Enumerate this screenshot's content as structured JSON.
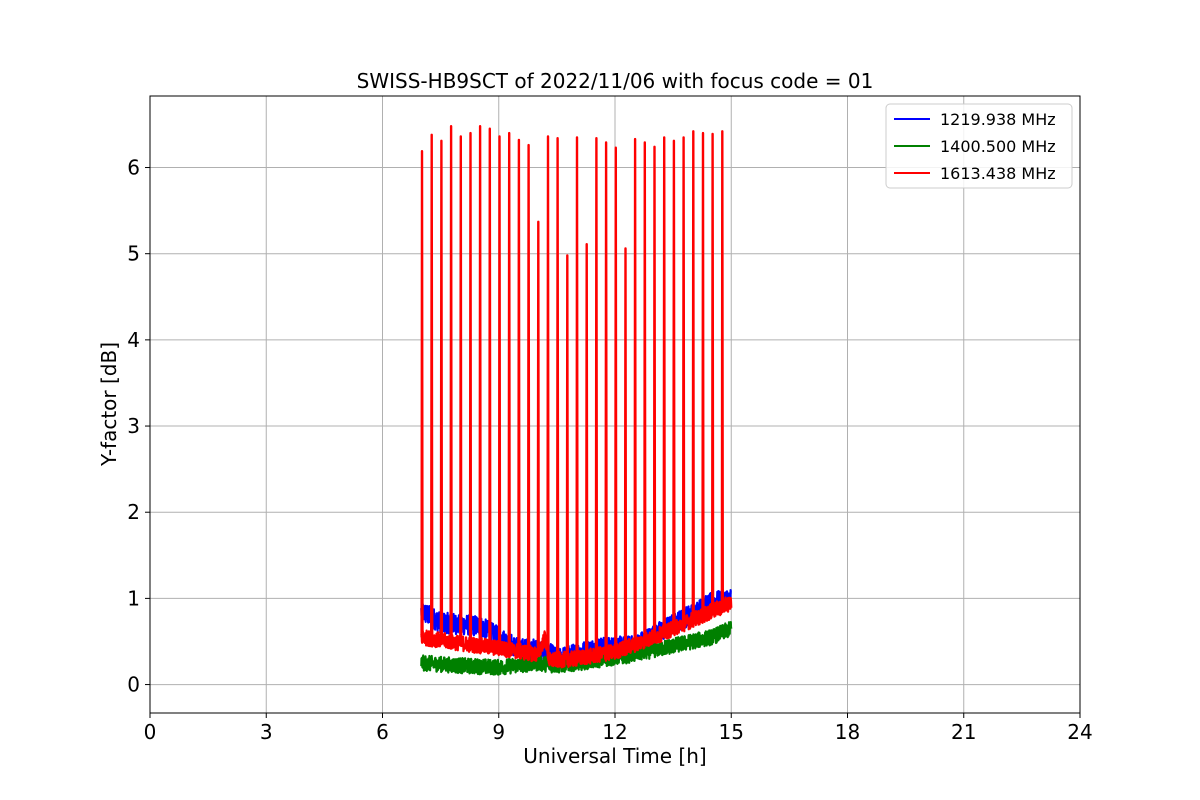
{
  "chart_data": {
    "type": "line",
    "title": "SWISS-HB9SCT of 2022/11/06 with focus code = 01",
    "xlabel": "Universal Time [h]",
    "ylabel": "Y-factor [dB]",
    "xlim": [
      0,
      24
    ],
    "ylim": [
      -0.33,
      6.83
    ],
    "xticks": [
      0,
      3,
      6,
      9,
      12,
      15,
      18,
      21,
      24
    ],
    "yticks": [
      0,
      1,
      2,
      3,
      4,
      5,
      6
    ],
    "grid": true,
    "legend_position": "top-right",
    "time_span": [
      7.0,
      15.0
    ],
    "series": [
      {
        "name": "1219.938 MHz",
        "color": "#0000ff",
        "baseline": [
          [
            7.0,
            0.85
          ],
          [
            7.5,
            0.72
          ],
          [
            8.5,
            0.68
          ],
          [
            9.5,
            0.42
          ],
          [
            10.2,
            0.4
          ],
          [
            10.5,
            0.3
          ],
          [
            11.5,
            0.42
          ],
          [
            12.5,
            0.45
          ],
          [
            13.5,
            0.7
          ],
          [
            14.5,
            0.95
          ],
          [
            15.0,
            1.0
          ]
        ],
        "noise": 0.12
      },
      {
        "name": "1400.500 MHz",
        "color": "#008000",
        "baseline": [
          [
            7.0,
            0.25
          ],
          [
            8.0,
            0.22
          ],
          [
            9.0,
            0.2
          ],
          [
            10.0,
            0.25
          ],
          [
            10.5,
            0.22
          ],
          [
            11.5,
            0.28
          ],
          [
            12.5,
            0.35
          ],
          [
            13.5,
            0.45
          ],
          [
            14.5,
            0.55
          ],
          [
            15.0,
            0.65
          ]
        ],
        "noise": 0.09
      },
      {
        "name": "1613.438 MHz",
        "color": "#ff0000",
        "baseline": [
          [
            7.0,
            0.55
          ],
          [
            8.0,
            0.48
          ],
          [
            9.0,
            0.42
          ],
          [
            10.0,
            0.35
          ],
          [
            10.2,
            0.55
          ],
          [
            10.3,
            0.28
          ],
          [
            11.0,
            0.3
          ],
          [
            12.0,
            0.38
          ],
          [
            13.0,
            0.55
          ],
          [
            14.0,
            0.75
          ],
          [
            15.0,
            0.95
          ]
        ],
        "noise": 0.09,
        "spikes": [
          [
            7.02,
            6.19
          ],
          [
            7.27,
            6.38
          ],
          [
            7.52,
            6.31
          ],
          [
            7.77,
            6.48
          ],
          [
            8.02,
            6.36
          ],
          [
            8.27,
            6.4
          ],
          [
            8.52,
            6.48
          ],
          [
            8.77,
            6.45
          ],
          [
            9.02,
            6.36
          ],
          [
            9.27,
            6.4
          ],
          [
            9.52,
            6.32
          ],
          [
            9.77,
            6.26
          ],
          [
            10.02,
            5.37
          ],
          [
            10.27,
            6.36
          ],
          [
            10.52,
            6.34
          ],
          [
            10.77,
            4.98
          ],
          [
            11.02,
            6.35
          ],
          [
            11.27,
            5.11
          ],
          [
            11.52,
            6.34
          ],
          [
            11.77,
            6.29
          ],
          [
            12.02,
            6.23
          ],
          [
            12.27,
            5.06
          ],
          [
            12.52,
            6.33
          ],
          [
            12.77,
            6.29
          ],
          [
            13.02,
            6.24
          ],
          [
            13.27,
            6.35
          ],
          [
            13.52,
            6.31
          ],
          [
            13.77,
            6.35
          ],
          [
            14.02,
            6.42
          ],
          [
            14.27,
            6.4
          ],
          [
            14.52,
            6.39
          ],
          [
            14.77,
            6.42
          ]
        ]
      }
    ]
  }
}
